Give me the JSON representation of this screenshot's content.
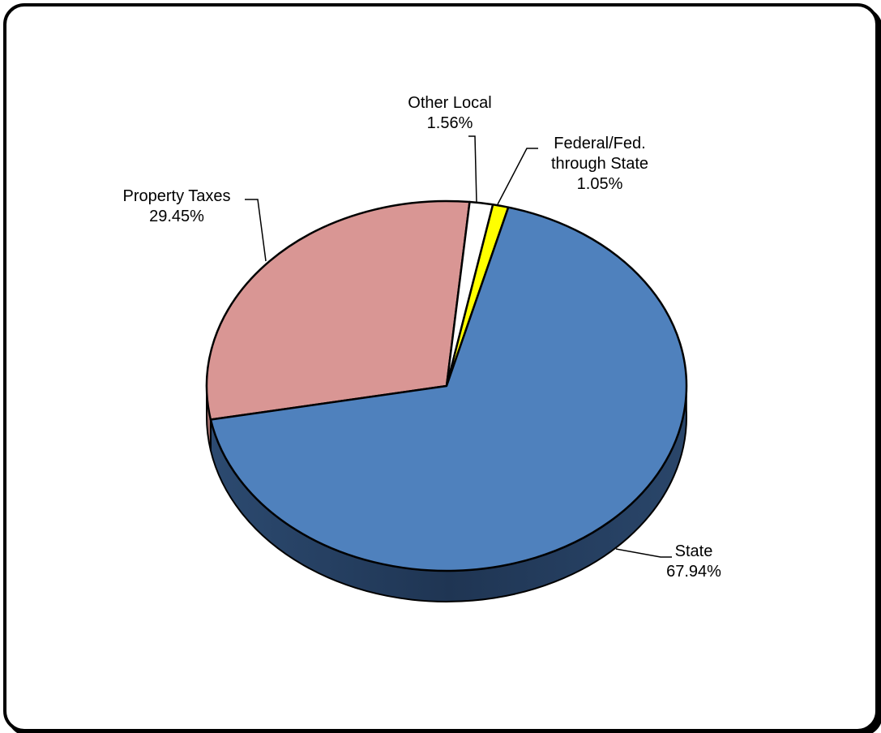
{
  "chart_data": {
    "type": "pie",
    "title": "",
    "slices": [
      {
        "label": "State",
        "value": 67.94,
        "value_label": "67.94%",
        "color": "#4f81bd"
      },
      {
        "label": "Property Taxes",
        "value": 29.45,
        "value_label": "29.45%",
        "color": "#d99694"
      },
      {
        "label": "Other Local",
        "value": 1.56,
        "value_label": "1.56%",
        "color": "#ffffff"
      },
      {
        "label": "Federal/Fed. through State",
        "label_lines": [
          "Federal/Fed.",
          "through State"
        ],
        "value": 1.05,
        "value_label": "1.05%",
        "color": "#ffff00"
      }
    ],
    "style": "3d-pie",
    "side_color": "#1f3553",
    "legend": "none"
  }
}
